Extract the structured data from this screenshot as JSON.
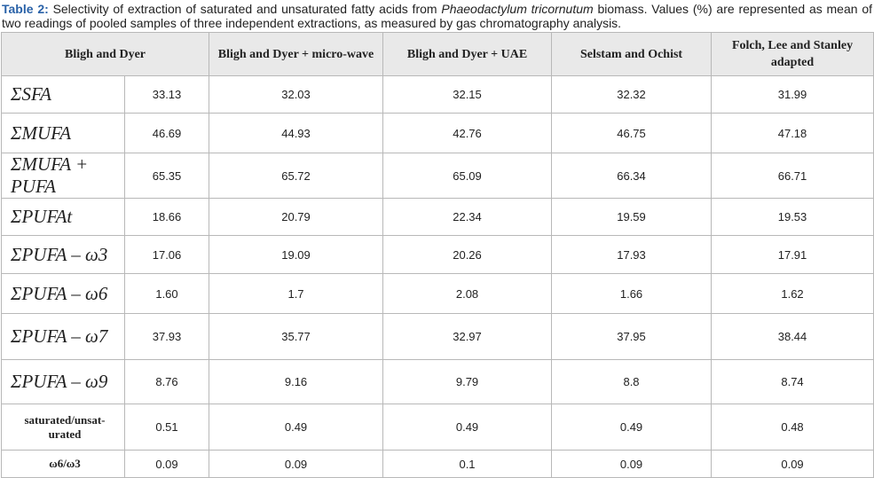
{
  "caption": {
    "label": "Table 2:",
    "text_before": "Selectivity of extraction of saturated and unsaturated fatty acids from",
    "species": "Phaeodactylum tricornutum",
    "text_after": "biomass. Values (%) are represented as mean of two readings of pooled samples of three independent extractions, as measured by gas chromatography analysis."
  },
  "table": {
    "headers": [
      "Bligh and Dyer",
      "Bligh and Dyer + micro-wave",
      "Bligh and Dyer + UAE",
      "Selstam and Ochist",
      "Folch, Lee and Stanley adapted"
    ],
    "rows": [
      [
        "ΣSFA",
        "33.13",
        "32.03",
        "32.15",
        "32.32",
        "31.99"
      ],
      [
        "ΣMUFA",
        "46.69",
        "44.93",
        "42.76",
        "46.75",
        "47.18"
      ],
      [
        "ΣMUFA + PUFA",
        "65.35",
        "65.72",
        "65.09",
        "66.34",
        "66.71"
      ],
      [
        "ΣPUFAt",
        "18.66",
        "20.79",
        "22.34",
        "19.59",
        "19.53"
      ],
      [
        "ΣPUFA – ω3",
        "17.06",
        "19.09",
        "20.26",
        "17.93",
        "17.91"
      ],
      [
        "ΣPUFA – ω6",
        "1.60",
        "1.7",
        "2.08",
        "1.66",
        "1.62"
      ],
      [
        "ΣPUFA – ω7",
        "37.93",
        "35.77",
        "32.97",
        "37.95",
        "38.44"
      ],
      [
        "ΣPUFA – ω9",
        "8.76",
        "9.16",
        "9.79",
        "8.8",
        "8.74"
      ],
      [
        "saturated/unsat-urated",
        "0.51",
        "0.49",
        "0.49",
        "0.49",
        "0.48"
      ],
      [
        "ω6/ω3",
        "0.09",
        "0.09",
        "0.1",
        "0.09",
        "0.09"
      ]
    ]
  }
}
